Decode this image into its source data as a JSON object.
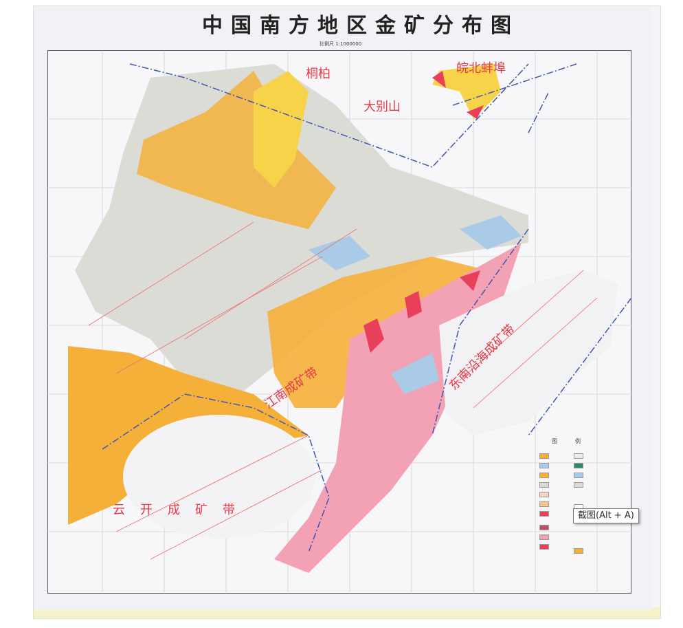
{
  "map": {
    "title": "中国南方地区金矿分布图",
    "scale": "比例尺 1:1000000",
    "region_labels": [
      "皖北蚌埠",
      "大别山",
      "桐柏",
      "东南沿海成矿带",
      "云开成矿带",
      "江南成矿带"
    ],
    "legend_title": "图例",
    "colors": {
      "orange": "#f5b03a",
      "yellow": "#f7d34a",
      "pink": "#f3a2b6",
      "red": "#e8405a",
      "blue": "#a9cbe8",
      "grey": "#dcdcd6",
      "label_red": "#e63a48",
      "boundary_blue": "#3f56b0"
    }
  },
  "tooltip": {
    "text": "截图(Alt + A)"
  }
}
